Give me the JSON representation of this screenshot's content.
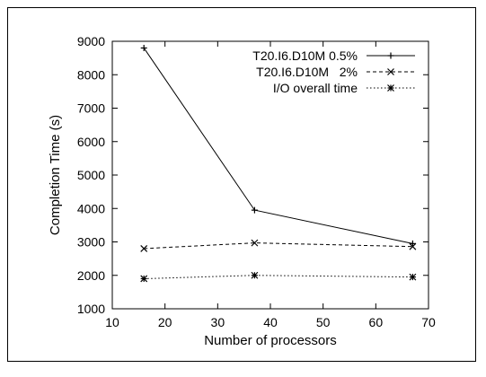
{
  "chart_data": {
    "type": "line",
    "xlabel": "Number of processors",
    "ylabel": "Completion Time (s)",
    "xlim": [
      10,
      70
    ],
    "ylim": [
      1000,
      9000
    ],
    "xticks": [
      "10",
      "20",
      "30",
      "40",
      "50",
      "60",
      "70"
    ],
    "yticks": [
      "1000",
      "2000",
      "3000",
      "4000",
      "5000",
      "6000",
      "7000",
      "8000",
      "9000"
    ],
    "legend_position": "top-right",
    "x": [
      16,
      37,
      67
    ],
    "series": [
      {
        "name": "T20.I6.D10M 0.5%",
        "values": [
          8800,
          3950,
          2950
        ],
        "marker": "plus",
        "dash": "solid"
      },
      {
        "name": "T20.I6.D10M   2%",
        "values": [
          2800,
          2970,
          2860
        ],
        "marker": "cross",
        "dash": "dashed"
      },
      {
        "name": "I/O overall time",
        "values": [
          1900,
          2000,
          1950
        ],
        "marker": "star",
        "dash": "dotted"
      }
    ]
  }
}
